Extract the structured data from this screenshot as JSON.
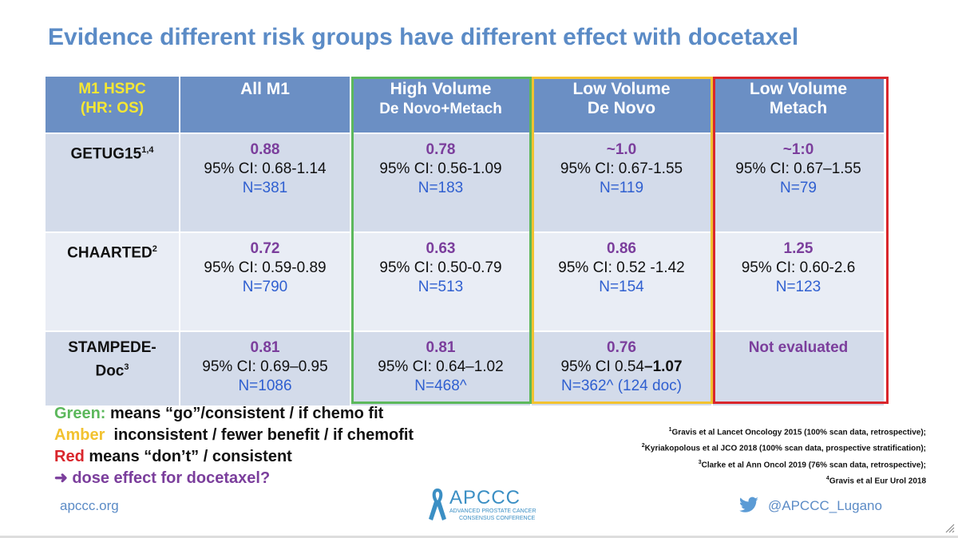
{
  "title": "Evidence different risk groups have different effect with docetaxel",
  "header": {
    "corner_line1": "M1 HSPC",
    "corner_line2": "(HR: OS)",
    "col1": "All M1",
    "col2_line1": "High Volume",
    "col2_line2": "De Novo+Metach",
    "col3_line1": "Low Volume",
    "col3_line2": "De Novo",
    "col4_line1": "Low Volume",
    "col4_line2": "Metach"
  },
  "rows": [
    {
      "name": "GETUG15",
      "sup": "1,4",
      "cells": [
        {
          "hr": "0.88",
          "ci": "95% CI: 0.68-1.14",
          "n": "N=381"
        },
        {
          "hr": "0.78",
          "ci": "95% CI: 0.56-1.09",
          "n": "N=183"
        },
        {
          "hr": "~1.0",
          "ci": "95% CI: 0.67-1.55",
          "n": "N=119"
        },
        {
          "hr": "~1:0",
          "ci": "95% CI: 0.67–1.55",
          "n": "N=79"
        }
      ]
    },
    {
      "name": "CHAARTED",
      "sup": "2",
      "cells": [
        {
          "hr": "0.72",
          "ci": "95% CI: 0.59-0.89",
          "n": "N=790"
        },
        {
          "hr": "0.63",
          "ci": "95% CI: 0.50-0.79",
          "n": "N=513"
        },
        {
          "hr": "0.86",
          "ci": "95% CI: 0.52 -1.42",
          "n": "N=154"
        },
        {
          "hr": "1.25",
          "ci": "95% CI: 0.60-2.6",
          "n": "N=123"
        }
      ]
    },
    {
      "name_line1": "STAMPEDE-",
      "name_line2": "Doc",
      "sup": "3",
      "cells": [
        {
          "hr": "0.81",
          "ci": "95% CI: 0.69–0.95",
          "n": "N=1086"
        },
        {
          "hr": "0.81",
          "ci": "95% CI: 0.64–1.02",
          "n": "N=468^"
        },
        {
          "hr": "0.76",
          "ci_prefix": "95% CI 0.54",
          "ci_bold": "–1.07",
          "n": "N=362^ (124 doc)"
        },
        {
          "not_evaluated": "Not evaluated"
        }
      ]
    }
  ],
  "legend": {
    "green_word": "Green:",
    "green_text": " means “go”/consistent / if chemo fit",
    "amber_word": "Amber",
    "amber_text": "  inconsistent / fewer benefit / if chemofit",
    "red_word": "Red",
    "red_text": " means “don’t” / consistent",
    "arrow_text": "➜ dose effect for docetaxel?"
  },
  "references": [
    {
      "sup": "1",
      "text": "Gravis et  al Lancet Oncology 2015 (100% scan data, retrospective);"
    },
    {
      "sup": "2",
      "text": "Kyriakopolous et al JCO 2018 (100% scan data, prospective stratification);"
    },
    {
      "sup": "3",
      "text": "Clarke et al Ann Oncol 2019 (76% scan data, retrospective);"
    },
    {
      "sup": "4",
      "text": "Gravis et al Eur Urol 2018"
    }
  ],
  "footer": {
    "website": "apccc.org",
    "logo_name": "APCCC",
    "logo_line1": "ADVANCED PROSTATE CANCER",
    "logo_line2": "CONSENSUS CONFERENCE",
    "twitter_handle": "@APCCC_Lugano"
  },
  "icons": {
    "ribbon": "awareness-ribbon-icon",
    "twitter": "twitter-bird-icon",
    "resize": "resize-grip-icon"
  },
  "colors": {
    "title_blue": "#5b8bc6",
    "header_bg": "#6b8fc4",
    "header_corner_text": "#f5e733",
    "purple": "#7b3e9c",
    "n_blue": "#2f5fd0",
    "green": "#5cb85c",
    "amber": "#f2c230",
    "red": "#d9262c"
  }
}
